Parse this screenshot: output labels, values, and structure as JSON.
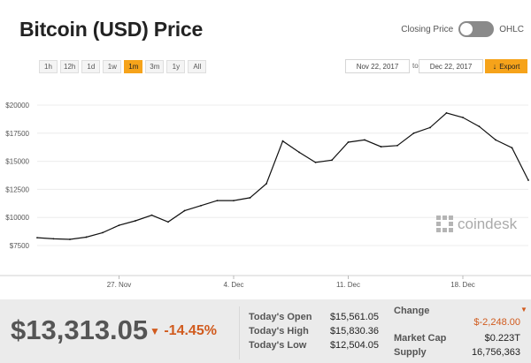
{
  "header": {
    "title": "Bitcoin (USD) Price",
    "toggle_left_label": "Closing Price",
    "toggle_right_label": "OHLC"
  },
  "ranges": [
    "1h",
    "12h",
    "1d",
    "1w",
    "1m",
    "3m",
    "1y",
    "All"
  ],
  "active_range": "1m",
  "date_from": "Nov 22, 2017",
  "to_label": "to",
  "date_to": "Dec 22, 2017",
  "export_label": "Export",
  "watermark": "coindesk",
  "colors": {
    "accent": "#f6a31a",
    "negative": "#d15b1e",
    "line": "#111111"
  },
  "chart_data": {
    "type": "line",
    "y_ticks": [
      "$7500",
      "$10000",
      "$12500",
      "$15000",
      "$17500",
      "$20000"
    ],
    "x_ticks": [
      "27. Nov",
      "4. Dec",
      "11. Dec",
      "18. Dec"
    ],
    "ylim": [
      7500,
      20000
    ],
    "x": [
      "Nov 22",
      "Nov 23",
      "Nov 24",
      "Nov 25",
      "Nov 26",
      "Nov 27",
      "Nov 28",
      "Nov 29",
      "Nov 30",
      "Dec 1",
      "Dec 2",
      "Dec 3",
      "Dec 4",
      "Dec 5",
      "Dec 6",
      "Dec 7",
      "Dec 8",
      "Dec 9",
      "Dec 10",
      "Dec 11",
      "Dec 12",
      "Dec 13",
      "Dec 14",
      "Dec 15",
      "Dec 16",
      "Dec 17",
      "Dec 18",
      "Dec 19",
      "Dec 20",
      "Dec 21",
      "Dec 22"
    ],
    "values": [
      8200,
      8100,
      8050,
      8250,
      8650,
      9300,
      9700,
      10200,
      9600,
      10600,
      11050,
      11500,
      11500,
      11750,
      13000,
      16800,
      15800,
      14900,
      15100,
      16700,
      16900,
      16300,
      16400,
      17500,
      18000,
      19300,
      18900,
      18100,
      16900,
      16200,
      13313
    ]
  },
  "footer": {
    "price": "$13,313.05",
    "change_pct": "-14.45%",
    "today_open_label": "Today's Open",
    "today_open": "$15,561.05",
    "today_high_label": "Today's High",
    "today_high": "$15,830.36",
    "today_low_label": "Today's Low",
    "today_low": "$12,504.05",
    "change_label": "Change",
    "change_value": "$-2,248.00",
    "market_cap_label": "Market Cap",
    "market_cap": "$0.223T",
    "supply_label": "Supply",
    "supply": "16,756,363"
  }
}
